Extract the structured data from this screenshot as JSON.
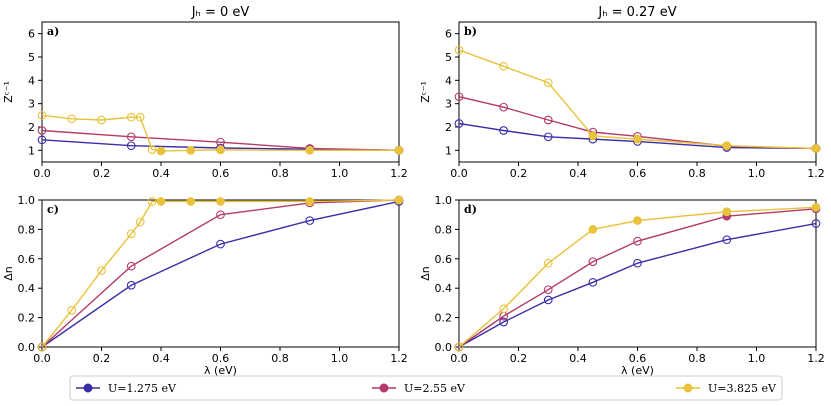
{
  "colors": {
    "s1": "#3a2fa8",
    "s2": "#b33a6a",
    "s3": "#e8c23a"
  },
  "legend": [
    {
      "label": "U=1.275 eV",
      "color": "#3a2fa8"
    },
    {
      "label": "U=2.55 eV",
      "color": "#b33a6a"
    },
    {
      "label": "U=3.825 eV",
      "color": "#e8c23a"
    }
  ],
  "chart_data": [
    {
      "type": "line",
      "id": "a",
      "tag": "a)",
      "title": "Jₕ = 0 eV",
      "ylabel": "Zᶜ⁻¹",
      "xlabel": "",
      "xlim": [
        0,
        1.2
      ],
      "ylim": [
        0.5,
        6.5
      ],
      "xticks": [
        "0.0",
        "0.2",
        "0.4",
        "0.6",
        "0.8",
        "1.0",
        "1.2"
      ],
      "xtick_values": [
        0,
        0.2,
        0.4,
        0.6,
        0.8,
        1.0,
        1.2
      ],
      "yticks": [
        "1",
        "2",
        "3",
        "4",
        "5",
        "6"
      ],
      "ytick_values": [
        1,
        2,
        3,
        4,
        5,
        6
      ],
      "series": [
        {
          "name": "U=1.275 eV",
          "x": [
            0,
            0.3,
            0.6,
            0.9,
            1.2
          ],
          "y": [
            1.45,
            1.2,
            1.1,
            1.05,
            1.0
          ],
          "filled": [
            false,
            false,
            false,
            false,
            false
          ]
        },
        {
          "name": "U=2.55 eV",
          "x": [
            0,
            0.3,
            0.6,
            0.9,
            1.2
          ],
          "y": [
            1.85,
            1.58,
            1.35,
            1.08,
            1.0
          ],
          "filled": [
            false,
            false,
            false,
            false,
            false
          ]
        },
        {
          "name": "U=3.825 eV",
          "x": [
            0,
            0.1,
            0.2,
            0.3,
            0.33,
            0.37,
            0.4,
            0.5,
            0.6,
            0.9,
            1.2
          ],
          "y": [
            2.5,
            2.35,
            2.3,
            2.42,
            2.42,
            1.03,
            0.97,
            1.0,
            1.02,
            1.0,
            1.0
          ],
          "filled": [
            false,
            false,
            false,
            false,
            false,
            false,
            true,
            true,
            true,
            true,
            true
          ]
        }
      ]
    },
    {
      "type": "line",
      "id": "b",
      "tag": "b)",
      "title": "Jₕ = 0.27 eV",
      "ylabel": "Zᶜ⁻¹",
      "xlabel": "",
      "xlim": [
        0,
        1.2
      ],
      "ylim": [
        0.5,
        6.5
      ],
      "xticks": [
        "0.0",
        "0.2",
        "0.4",
        "0.6",
        "0.8",
        "1.0",
        "1.2"
      ],
      "xtick_values": [
        0,
        0.2,
        0.4,
        0.6,
        0.8,
        1.0,
        1.2
      ],
      "yticks": [
        "1",
        "2",
        "3",
        "4",
        "5",
        "6"
      ],
      "ytick_values": [
        1,
        2,
        3,
        4,
        5,
        6
      ],
      "series": [
        {
          "name": "U=1.275 eV",
          "x": [
            0,
            0.15,
            0.3,
            0.45,
            0.6,
            0.9,
            1.2
          ],
          "y": [
            2.15,
            1.85,
            1.58,
            1.48,
            1.38,
            1.12,
            1.08
          ],
          "filled": [
            false,
            false,
            false,
            false,
            false,
            false,
            false
          ]
        },
        {
          "name": "U=2.55 eV",
          "x": [
            0,
            0.15,
            0.3,
            0.45,
            0.6,
            0.9,
            1.2
          ],
          "y": [
            3.3,
            2.85,
            2.3,
            1.78,
            1.6,
            1.18,
            1.08
          ],
          "filled": [
            false,
            false,
            false,
            false,
            false,
            false,
            false
          ]
        },
        {
          "name": "U=3.825 eV",
          "x": [
            0,
            0.15,
            0.3,
            0.45,
            0.6,
            0.9,
            1.2
          ],
          "y": [
            5.3,
            4.6,
            3.9,
            1.62,
            1.48,
            1.2,
            1.08
          ],
          "filled": [
            false,
            false,
            false,
            true,
            true,
            true,
            true
          ]
        }
      ]
    },
    {
      "type": "line",
      "id": "c",
      "tag": "c)",
      "title": "",
      "ylabel": "Δn",
      "xlabel": "λ (eV)",
      "xlim": [
        0,
        1.2
      ],
      "ylim": [
        0,
        1.0
      ],
      "xticks": [
        "0.0",
        "0.2",
        "0.4",
        "0.6",
        "0.8",
        "1.0",
        "1.2"
      ],
      "xtick_values": [
        0,
        0.2,
        0.4,
        0.6,
        0.8,
        1.0,
        1.2
      ],
      "yticks": [
        "0.0",
        "0.2",
        "0.4",
        "0.6",
        "0.8",
        "1.0"
      ],
      "ytick_values": [
        0,
        0.2,
        0.4,
        0.6,
        0.8,
        1.0
      ],
      "series": [
        {
          "name": "U=1.275 eV",
          "x": [
            0,
            0.3,
            0.6,
            0.9,
            1.2
          ],
          "y": [
            0.0,
            0.42,
            0.7,
            0.86,
            0.99
          ],
          "filled": [
            false,
            false,
            false,
            false,
            false
          ]
        },
        {
          "name": "U=2.55 eV",
          "x": [
            0,
            0.3,
            0.6,
            0.9,
            1.2
          ],
          "y": [
            0.0,
            0.55,
            0.9,
            0.98,
            1.0
          ],
          "filled": [
            false,
            false,
            false,
            false,
            false
          ]
        },
        {
          "name": "U=3.825 eV",
          "x": [
            0,
            0.1,
            0.2,
            0.3,
            0.33,
            0.37,
            0.4,
            0.5,
            0.6,
            0.9,
            1.2
          ],
          "y": [
            0.0,
            0.25,
            0.52,
            0.77,
            0.85,
            0.99,
            0.99,
            0.99,
            0.99,
            0.99,
            1.0
          ],
          "filled": [
            false,
            false,
            false,
            false,
            false,
            false,
            true,
            true,
            true,
            true,
            true
          ]
        }
      ]
    },
    {
      "type": "line",
      "id": "d",
      "tag": "d)",
      "title": "",
      "ylabel": "Δn",
      "xlabel": "λ (eV)",
      "xlim": [
        0,
        1.2
      ],
      "ylim": [
        0,
        1.0
      ],
      "xticks": [
        "0.0",
        "0.2",
        "0.4",
        "0.6",
        "0.8",
        "1.0",
        "1.2"
      ],
      "xtick_values": [
        0,
        0.2,
        0.4,
        0.6,
        0.8,
        1.0,
        1.2
      ],
      "yticks": [
        "0.0",
        "0.2",
        "0.4",
        "0.6",
        "0.8",
        "1.0"
      ],
      "ytick_values": [
        0,
        0.2,
        0.4,
        0.6,
        0.8,
        1.0
      ],
      "series": [
        {
          "name": "U=1.275 eV",
          "x": [
            0,
            0.15,
            0.3,
            0.45,
            0.6,
            0.9,
            1.2
          ],
          "y": [
            0.0,
            0.17,
            0.32,
            0.44,
            0.57,
            0.73,
            0.84
          ],
          "filled": [
            false,
            false,
            false,
            false,
            false,
            false,
            false
          ]
        },
        {
          "name": "U=2.55 eV",
          "x": [
            0,
            0.15,
            0.3,
            0.45,
            0.6,
            0.9,
            1.2
          ],
          "y": [
            0.0,
            0.21,
            0.39,
            0.58,
            0.72,
            0.89,
            0.94
          ],
          "filled": [
            false,
            false,
            false,
            false,
            false,
            true,
            true
          ]
        },
        {
          "name": "U=3.825 eV",
          "x": [
            0,
            0.15,
            0.3,
            0.45,
            0.6,
            0.9,
            1.2
          ],
          "y": [
            0.0,
            0.26,
            0.57,
            0.8,
            0.86,
            0.92,
            0.95
          ],
          "filled": [
            false,
            false,
            false,
            true,
            true,
            true,
            true
          ]
        }
      ]
    }
  ]
}
